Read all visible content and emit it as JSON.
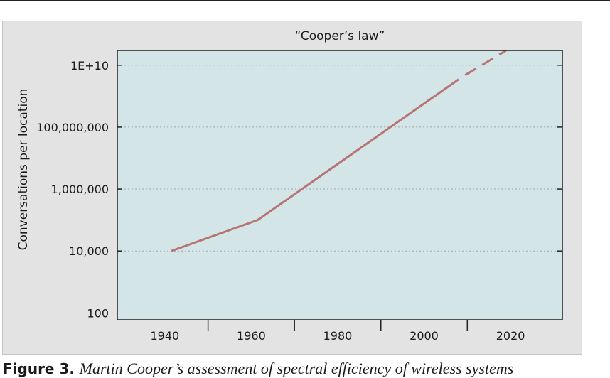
{
  "caption": {
    "label": "Figure 3.",
    "text": "Martin Cooper’s assessment of spectral efficiency of wireless systems"
  },
  "chart_data": {
    "type": "line",
    "title": "“Cooper’s law”",
    "xlabel": "",
    "ylabel": "Conversations per location",
    "y_scale": "log",
    "xlim": [
      1929,
      2032
    ],
    "ylim": [
      60,
      30000000000.0
    ],
    "x_tick_labels": [
      "1940",
      "1960",
      "1980",
      "2000",
      "2020"
    ],
    "x_tick_values": [
      1940,
      1960,
      1980,
      2000,
      2020
    ],
    "x_divider_values": [
      1950,
      1970,
      1990,
      2010
    ],
    "y_tick_labels": [
      "100",
      "10,000",
      "1,000,000",
      "100,000,000",
      "1E+10"
    ],
    "y_tick_values": [
      100,
      10000,
      1000000,
      100000000,
      10000000000
    ],
    "grid": "horizontal dotted",
    "plot_background": "#d4e5e8",
    "frame_background": "#e3e3e3",
    "series": [
      {
        "color": "#b87474",
        "style": "solid",
        "x": [
          1941.5,
          1961.5,
          2008
        ],
        "y": [
          10000,
          100000,
          3500000000
        ]
      },
      {
        "color": "#b87474",
        "style": "dashed",
        "x": [
          2009.5,
          2019
        ],
        "y": [
          4800000000,
          30000000000
        ]
      }
    ]
  }
}
